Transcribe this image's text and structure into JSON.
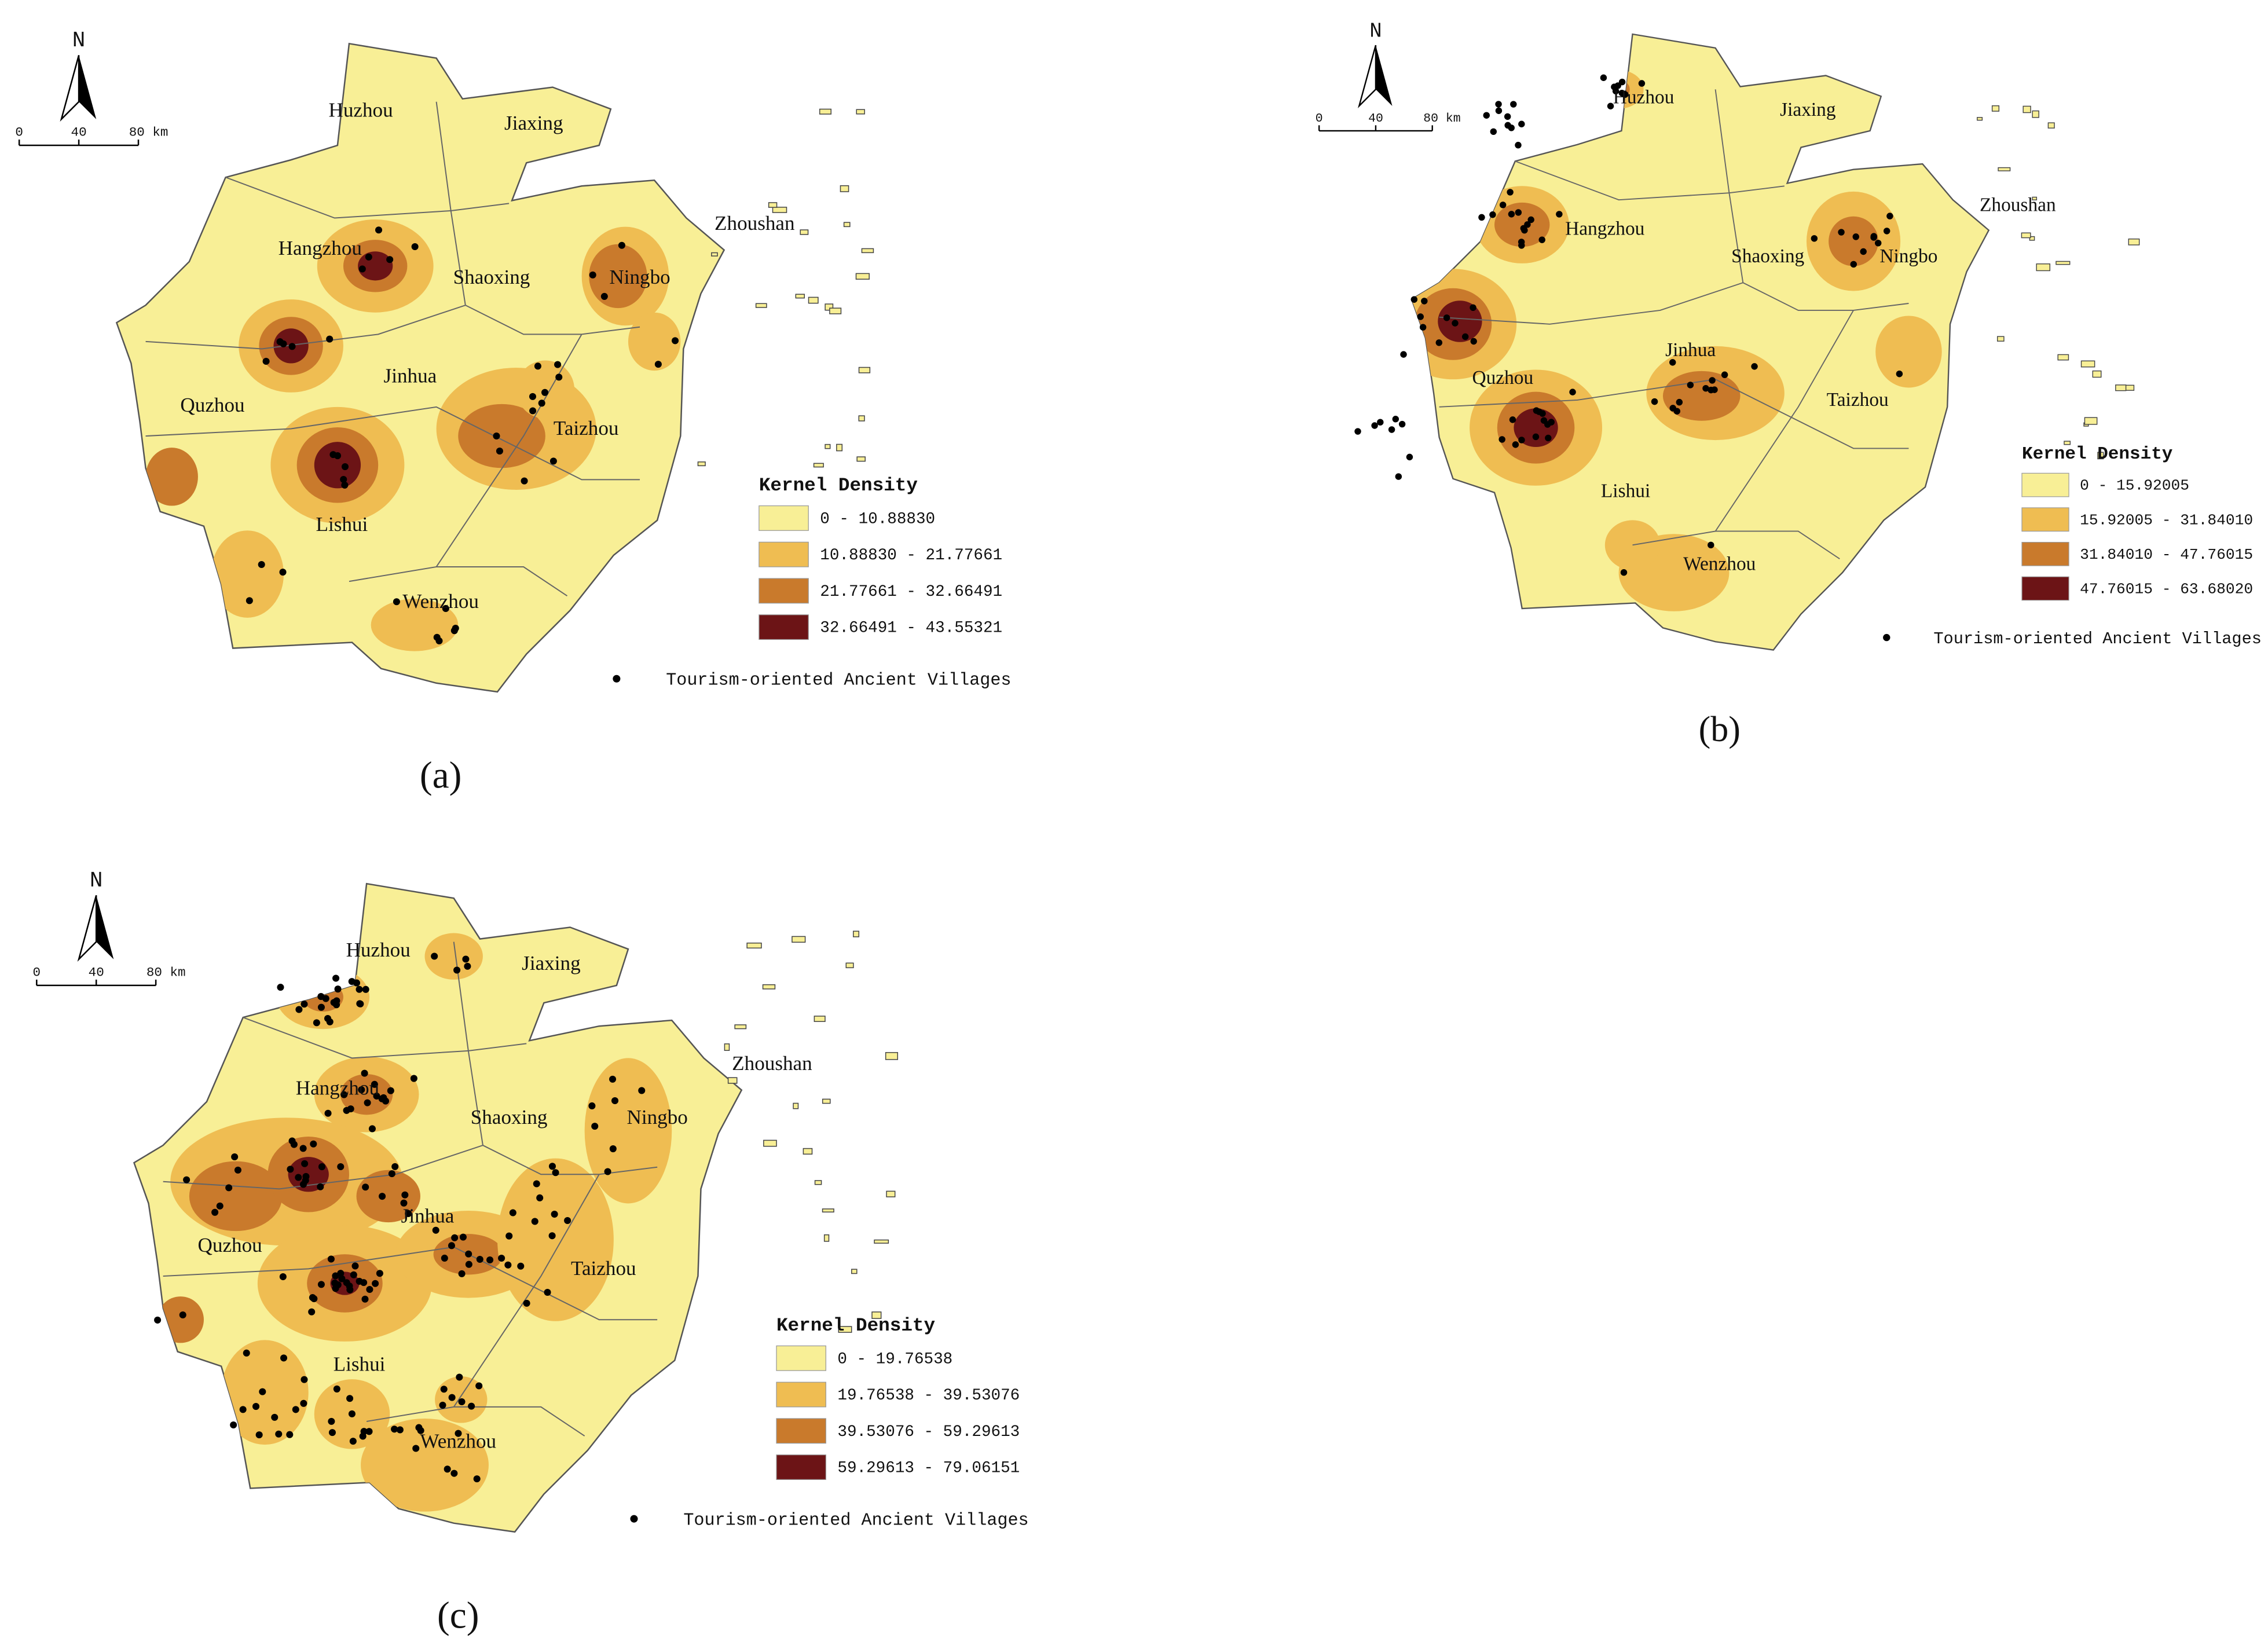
{
  "panels": [
    {
      "north": "N",
      "scale": [
        "0",
        "40",
        "80 km"
      ],
      "cities": [
        "Huzhou",
        "Jiaxing",
        "Hangzhou",
        "Shaoxing",
        "Ningbo",
        "Zhoushan",
        "Jinhua",
        "Quzhou",
        "Taizhou",
        "Lishui",
        "Wenzhou"
      ],
      "legend": {
        "title": "Kernel Density",
        "ranges": [
          "0 - 10.88830",
          "10.88830 - 21.77661",
          "21.77661 - 32.66491",
          "32.66491 - 43.55321"
        ]
      },
      "points_label": "Tourism-oriented Ancient Villages",
      "caption": "(a)"
    },
    {
      "north": "N",
      "scale": [
        "0",
        "40",
        "80 km"
      ],
      "cities": [
        "Huzhou",
        "Jiaxing",
        "Hangzhou",
        "Shaoxing",
        "Ningbo",
        "Zhoushan",
        "Jinhua",
        "Quzhou",
        "Taizhou",
        "Lishui",
        "Wenzhou"
      ],
      "legend": {
        "title": "Kernel Density",
        "ranges": [
          "0 - 15.92005",
          "15.92005 - 31.84010",
          "31.84010 - 47.76015",
          "47.76015 - 63.68020"
        ]
      },
      "points_label": "Tourism-oriented Ancient Villages",
      "caption": "(b)"
    },
    {
      "north": "N",
      "scale": [
        "0",
        "40",
        "80 km"
      ],
      "cities": [
        "Huzhou",
        "Jiaxing",
        "Hangzhou",
        "Shaoxing",
        "Ningbo",
        "Zhoushan",
        "Jinhua",
        "Quzhou",
        "Taizhou",
        "Lishui",
        "Wenzhou"
      ],
      "legend": {
        "title": "Kernel Density",
        "ranges": [
          "0 - 19.76538",
          "19.76538 - 39.53076",
          "39.53076 - 59.29613",
          "59.29613 - 79.06151"
        ]
      },
      "points_label": "Tourism-oriented Ancient Villages",
      "caption": "(c)"
    }
  ]
}
